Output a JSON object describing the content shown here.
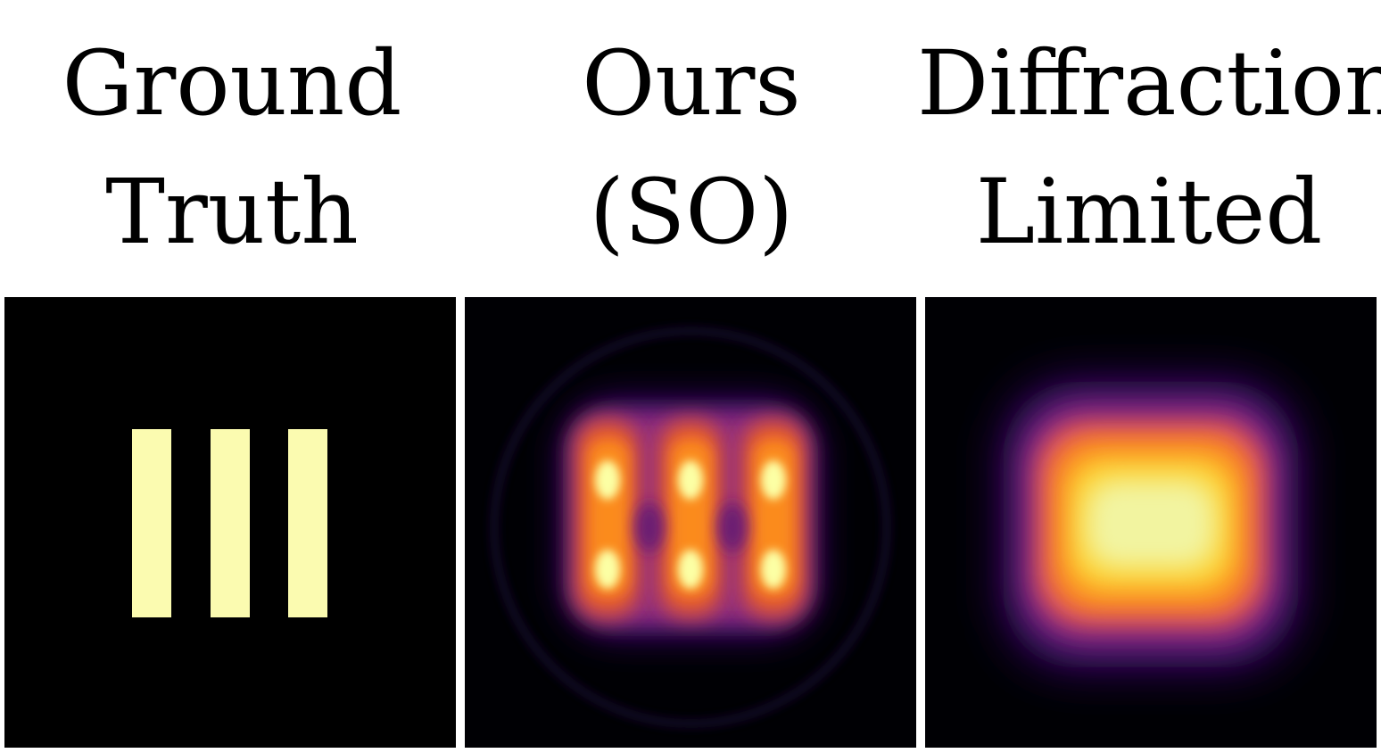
{
  "columns": [
    {
      "line1": "Ground",
      "line2": "Truth"
    },
    {
      "line1": "Ours",
      "line2": "(SO)"
    },
    {
      "line1": "Diffraction",
      "line2": "Limited"
    }
  ],
  "colors": {
    "background": "#000000",
    "bar_fill": "#fbfbb0",
    "colormap": [
      "#000004",
      "#3b0f70",
      "#8c2981",
      "#dd4a69",
      "#fb8b1f",
      "#fcd335",
      "#fcffa4"
    ]
  }
}
